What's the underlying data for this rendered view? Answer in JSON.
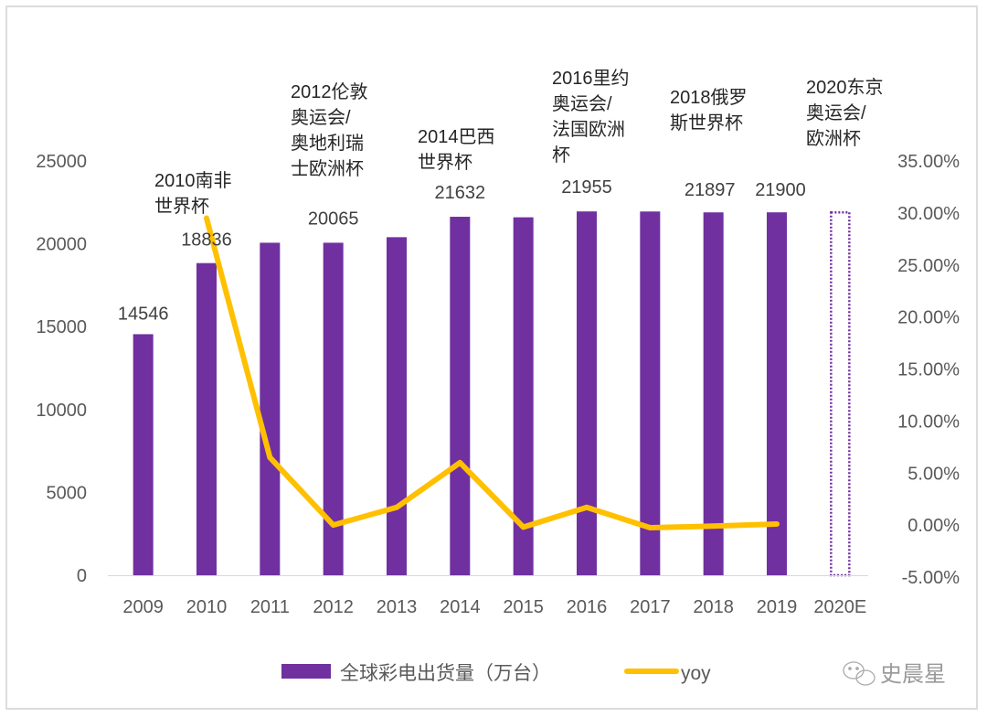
{
  "chart_data": {
    "type": "bar+line",
    "title": "",
    "categories": [
      "2009",
      "2010",
      "2011",
      "2012",
      "2013",
      "2014",
      "2015",
      "2016",
      "2017",
      "2018",
      "2019",
      "2020E"
    ],
    "series": [
      {
        "name": "全球彩电出货量（万台）",
        "type": "bar",
        "axis": "left",
        "color": "#7030A0",
        "values": [
          14546,
          18836,
          20065,
          20065,
          20400,
          21632,
          21600,
          21955,
          21950,
          21897,
          21900,
          21950
        ],
        "data_labels": {
          "0": "14546",
          "1": "18836",
          "3": "20065",
          "5": "21632",
          "7": "21955",
          "9": "21897",
          "10": "21900"
        },
        "estimated_categories": [
          "2020E"
        ]
      },
      {
        "name": "yoy",
        "type": "line",
        "axis": "right",
        "color": "#FFC000",
        "values": [
          null,
          0.295,
          0.065,
          0.0,
          0.017,
          0.06,
          -0.002,
          0.017,
          -0.0025,
          -0.001,
          0.001,
          null
        ]
      }
    ],
    "left_axis": {
      "ylim": [
        0,
        25000
      ],
      "ticks": [
        "0",
        "5000",
        "10000",
        "15000",
        "20000",
        "25000"
      ],
      "tick_values": [
        0,
        5000,
        10000,
        15000,
        20000,
        25000
      ]
    },
    "right_axis": {
      "ylim": [
        -0.05,
        0.35
      ],
      "ticks": [
        "-5.00%",
        "0.00%",
        "5.00%",
        "10.00%",
        "15.00%",
        "20.00%",
        "25.00%",
        "30.00%",
        "35.00%"
      ],
      "tick_values": [
        -0.05,
        0,
        0.05,
        0.1,
        0.15,
        0.2,
        0.25,
        0.3,
        0.35
      ]
    },
    "annotations": [
      {
        "category": "2010",
        "lines": [
          "2010南非",
          "世界杯"
        ]
      },
      {
        "category": "2012",
        "lines": [
          "2012伦敦",
          "奥运会/",
          "奥地利瑞",
          "士欧洲杯"
        ]
      },
      {
        "category": "2014",
        "lines": [
          "2014巴西",
          "世界杯"
        ]
      },
      {
        "category": "2016",
        "lines": [
          "2016里约",
          "奥运会/",
          "法国欧洲",
          "杯"
        ]
      },
      {
        "category": "2018",
        "lines": [
          "2018俄罗",
          "斯世界杯"
        ]
      },
      {
        "category": "2020E",
        "lines": [
          "2020东京",
          "奥运会/",
          "欧洲杯"
        ]
      }
    ],
    "grid": false,
    "legend": {
      "position": "bottom",
      "entries": [
        "全球彩电出货量（万台）",
        "yoy"
      ]
    }
  },
  "watermark": {
    "text": "史晨星",
    "icon": "wechat-icon"
  }
}
